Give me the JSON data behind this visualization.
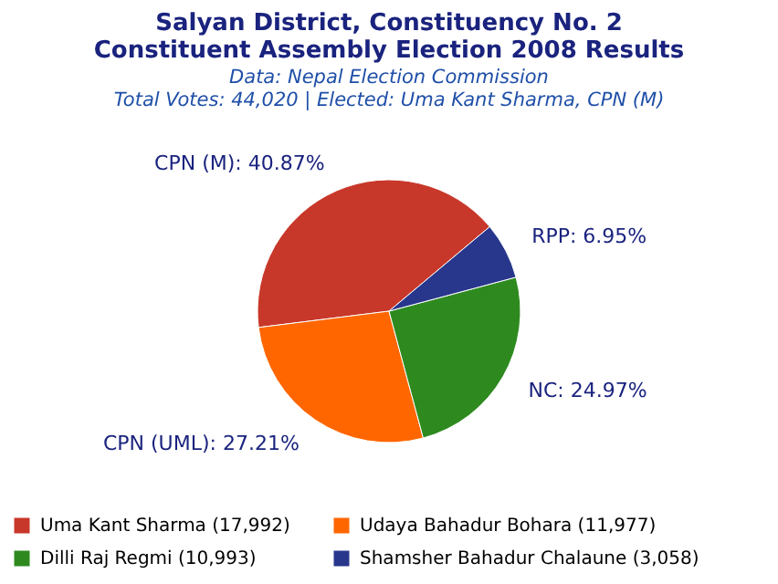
{
  "chart_data": {
    "type": "pie",
    "title": "Salyan District, Constituency No. 2",
    "subtitle": "Constituent Assembly Election 2008 Results",
    "annotations": [
      "Data: Nepal Election Commission",
      "Total Votes: 44,020 | Elected: Uma Kant Sharma, CPN (M)"
    ],
    "categories": [
      "Uma Kant Sharma (17,992)",
      "Udaya Bahadur Bohara (11,977)",
      "Dilli Raj Regmi (10,993)",
      "Shamsher Bahadur Chalaune (3,058)"
    ],
    "values": [
      40.87,
      27.21,
      24.97,
      6.95
    ],
    "value_labels": [
      "CPN (M): 40.87%",
      "CPN (UML): 27.21%",
      "NC: 24.97%",
      "RPP: 6.95%"
    ],
    "colors": [
      "#c8382a",
      "#ff6600",
      "#2e8a1f",
      "#28378c"
    ],
    "legend": "bottom"
  }
}
